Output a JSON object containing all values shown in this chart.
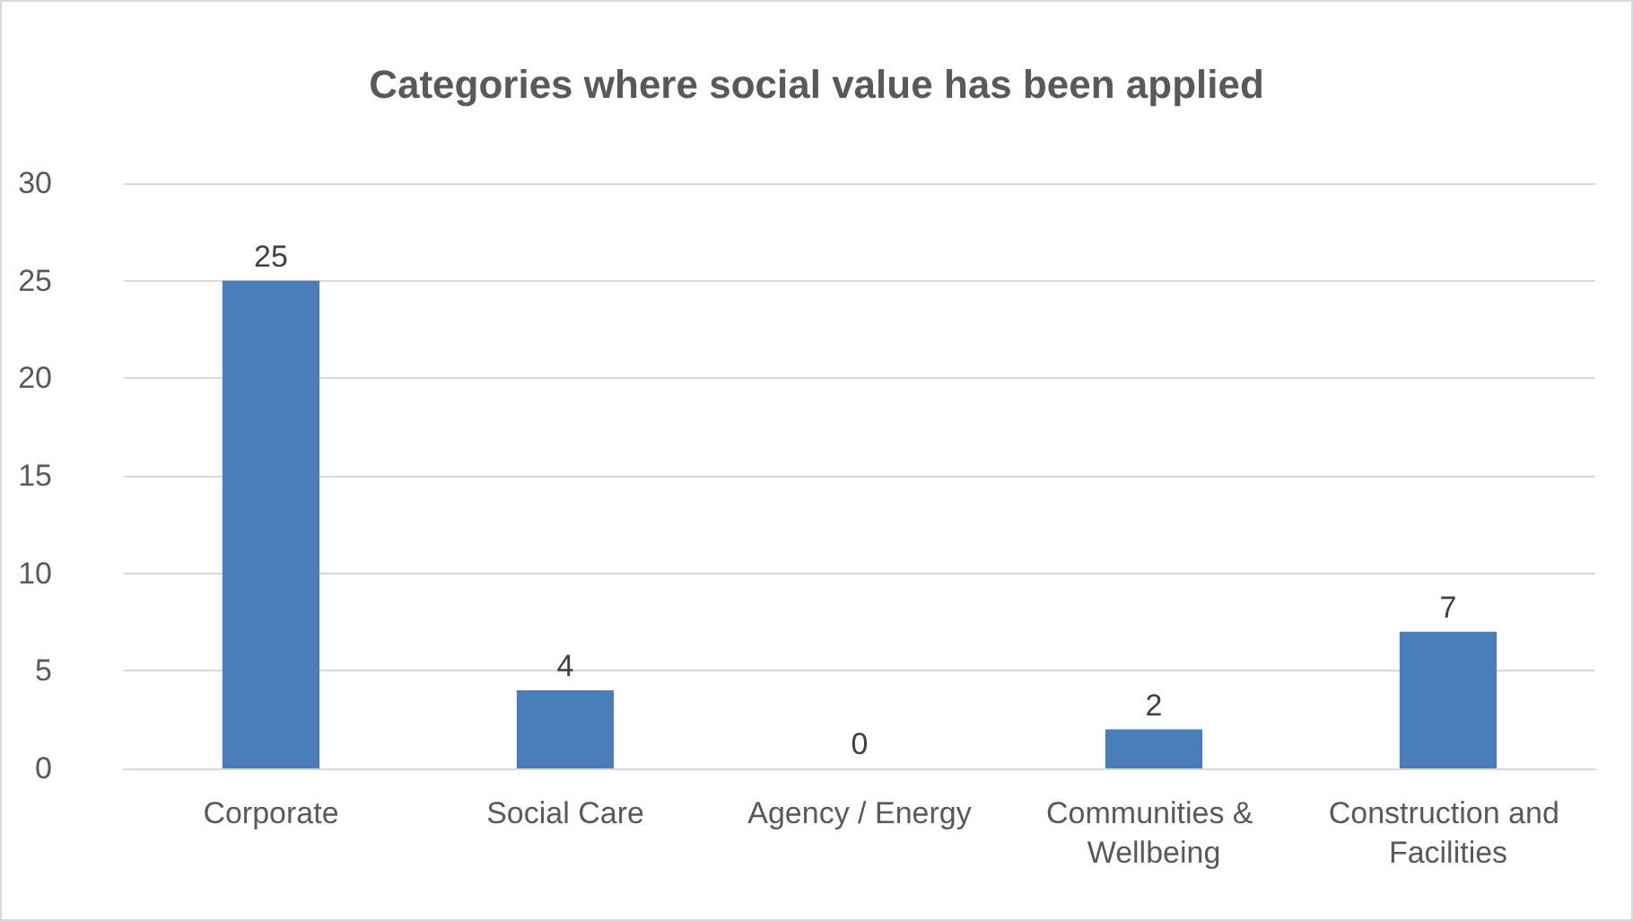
{
  "chart_data": {
    "type": "bar",
    "title": "Categories where social value has been applied",
    "categories": [
      "Corporate",
      "Social Care",
      "Agency / Energy",
      "Communities & Wellbeing",
      "Construction and Facilities"
    ],
    "values": [
      25,
      4,
      0,
      2,
      7
    ],
    "color": "#4a7ebb",
    "ylim": [
      0,
      30
    ],
    "yticks": [
      0,
      5,
      10,
      15,
      20,
      25,
      30
    ],
    "grid": "y",
    "data_labels": true
  }
}
